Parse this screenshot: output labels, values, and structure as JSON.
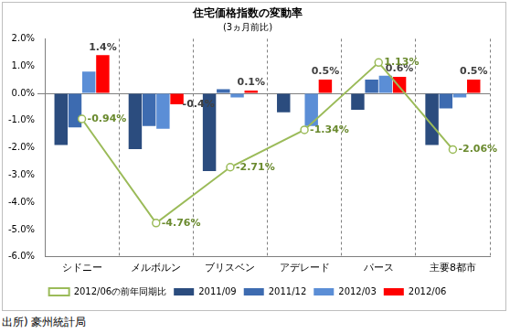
{
  "chart_data": {
    "type": "bar",
    "title": "住宅価格指数の変動率",
    "subtitle": "(3ヵ月前比)",
    "source": "出所) 豪州統計局",
    "categories": [
      "シドニー",
      "メルボルン",
      "ブリスベン",
      "アデレード",
      "パース",
      "主要8都市"
    ],
    "series": [
      {
        "name": "2011/09",
        "color": "#2b4c7e",
        "values": [
          -1.9,
          -2.05,
          -2.85,
          -0.7,
          -0.6,
          -1.9
        ]
      },
      {
        "name": "2011/12",
        "color": "#3d6bb0",
        "values": [
          -1.25,
          -1.2,
          0.15,
          0.0,
          0.5,
          -0.55
        ]
      },
      {
        "name": "2012/03",
        "color": "#5b8ed6",
        "values": [
          0.8,
          -1.3,
          -0.15,
          -1.2,
          0.65,
          -0.15
        ]
      },
      {
        "name": "2012/06",
        "color": "#ff0000",
        "values": [
          1.4,
          -0.4,
          0.1,
          0.5,
          0.6,
          0.5
        ],
        "data_labels": true,
        "value_labels": [
          "1.4%",
          "-0.4%",
          "0.1%",
          "0.5%",
          "0.6%",
          "0.5%"
        ]
      },
      {
        "name": "2012/06の前年同期比",
        "type": "line",
        "color": "#9bbb59",
        "marker": "circle",
        "line_style": "solid",
        "values": [
          -0.94,
          -4.76,
          -2.71,
          -1.34,
          1.13,
          -2.06
        ],
        "data_labels": true,
        "value_labels": [
          "-0.94%",
          "-4.76%",
          "-2.71%",
          "-1.34%",
          "1.13%",
          "-2.06%"
        ]
      }
    ],
    "ylim": [
      -6,
      2
    ],
    "yticks": [
      {
        "value": -6,
        "label": "-6.0%"
      },
      {
        "value": -5,
        "label": "-5.0%"
      },
      {
        "value": -4,
        "label": "-4.0%"
      },
      {
        "value": -3,
        "label": "-3.0%"
      },
      {
        "value": -2,
        "label": "-2.0%"
      },
      {
        "value": -1,
        "label": "-1.0%"
      },
      {
        "value": 0,
        "label": "0.0%"
      },
      {
        "value": 1,
        "label": "1.0%"
      },
      {
        "value": 2,
        "label": "2.0%"
      }
    ],
    "grid": true,
    "legend": "bottom"
  }
}
